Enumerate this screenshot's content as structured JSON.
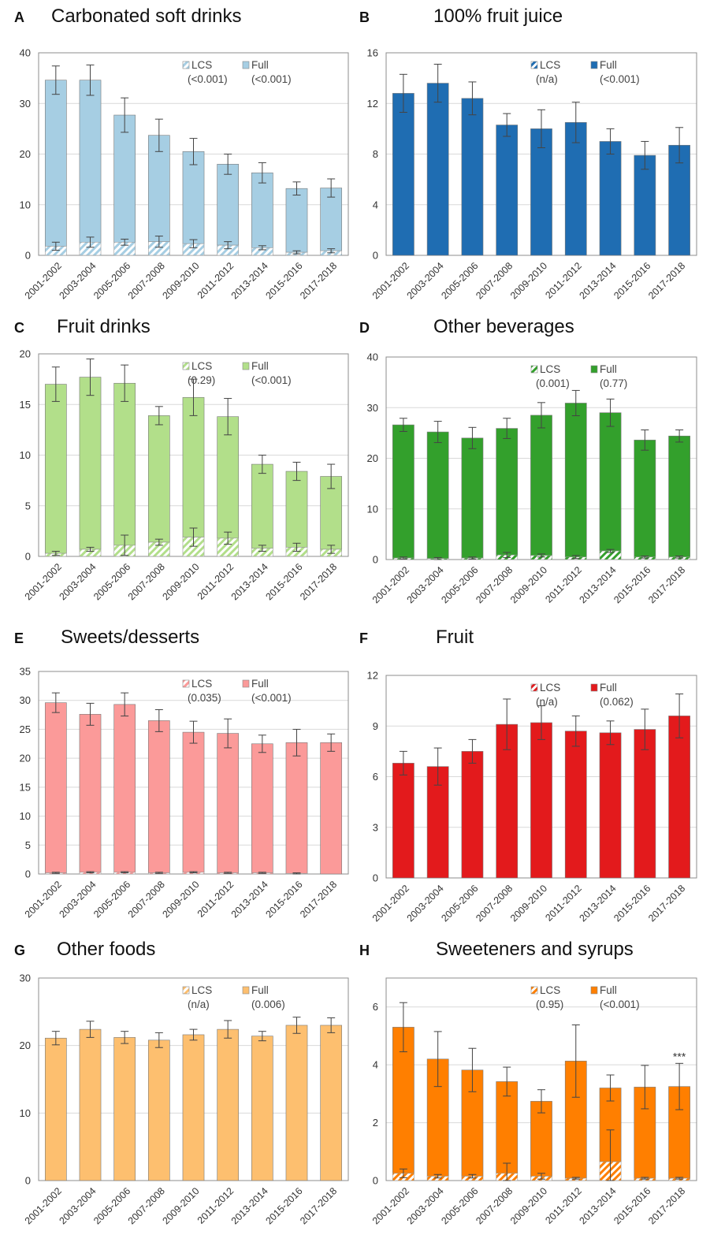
{
  "chart_data": [
    {
      "type": "bar",
      "panel": "A",
      "title": "Carbonated soft drinks",
      "categories": [
        "2001-2002",
        "2003-2004",
        "2005-2006",
        "2007-2008",
        "2009-2010",
        "2011-2012",
        "2013-2014",
        "2015-2016",
        "2017-2018"
      ],
      "ylim": [
        0,
        40
      ],
      "yticks": [
        0,
        10,
        20,
        30,
        40
      ],
      "grid": true,
      "legend_placement": "top-right",
      "color": "#a6cee3",
      "series": [
        {
          "name": "LCS",
          "p_label": "(<0.001)",
          "values": [
            1.8,
            2.6,
            2.6,
            2.7,
            2.3,
            2.0,
            1.5,
            0.6,
            0.9
          ],
          "error": [
            0.8,
            1.0,
            0.6,
            1.1,
            0.8,
            0.7,
            0.4,
            0.3,
            0.4
          ]
        },
        {
          "name": "Full",
          "p_label": "(<0.001)",
          "values": [
            32.8,
            32.0,
            25.1,
            21.0,
            18.2,
            16.0,
            14.8,
            12.6,
            12.4
          ],
          "error": [
            2.8,
            3.0,
            3.4,
            3.2,
            2.6,
            2.0,
            2.0,
            1.3,
            1.8
          ]
        }
      ]
    },
    {
      "type": "bar",
      "panel": "B",
      "title": "100% fruit juice",
      "categories": [
        "2001-2002",
        "2003-2004",
        "2005-2006",
        "2007-2008",
        "2009-2010",
        "2011-2012",
        "2013-2014",
        "2015-2016",
        "2017-2018"
      ],
      "ylim": [
        0,
        16
      ],
      "yticks": [
        0,
        4,
        8,
        12,
        16
      ],
      "grid": true,
      "legend_placement": "top-right",
      "color": "#1f6db2",
      "series": [
        {
          "name": "LCS",
          "p_label": "(n/a)",
          "values": [
            0,
            0,
            0,
            0,
            0,
            0,
            0,
            0,
            0
          ],
          "error": [
            0,
            0,
            0,
            0,
            0,
            0,
            0,
            0,
            0
          ]
        },
        {
          "name": "Full",
          "p_label": "(<0.001)",
          "values": [
            12.8,
            13.6,
            12.4,
            10.3,
            10.0,
            10.5,
            9.0,
            7.9,
            8.7
          ],
          "error": [
            1.5,
            1.5,
            1.3,
            0.9,
            1.5,
            1.6,
            1.0,
            1.1,
            1.4
          ]
        }
      ]
    },
    {
      "type": "bar",
      "panel": "C",
      "title": "Fruit drinks",
      "categories": [
        "2001-2002",
        "2003-2004",
        "2005-2006",
        "2007-2008",
        "2009-2010",
        "2011-2012",
        "2013-2014",
        "2015-2016",
        "2017-2018"
      ],
      "ylim": [
        0,
        20
      ],
      "yticks": [
        0,
        5,
        10,
        15,
        20
      ],
      "grid": true,
      "legend_placement": "top-right",
      "color": "#b2df8a",
      "series": [
        {
          "name": "LCS",
          "p_label": "(0.29)",
          "values": [
            0.3,
            0.7,
            1.1,
            1.4,
            1.9,
            1.8,
            0.8,
            0.9,
            0.7
          ],
          "error": [
            0.2,
            0.2,
            1.0,
            0.3,
            0.9,
            0.6,
            0.3,
            0.4,
            0.4
          ]
        },
        {
          "name": "Full",
          "p_label": "(<0.001)",
          "values": [
            16.7,
            17.0,
            16.0,
            12.5,
            13.8,
            12.0,
            8.3,
            7.5,
            7.2
          ],
          "error": [
            1.7,
            1.8,
            1.8,
            0.9,
            1.8,
            1.8,
            0.9,
            0.9,
            1.2
          ]
        }
      ]
    },
    {
      "type": "bar",
      "panel": "D",
      "title": "Other beverages",
      "categories": [
        "2001-2002",
        "2003-2004",
        "2005-2006",
        "2007-2008",
        "2009-2010",
        "2011-2012",
        "2013-2014",
        "2015-2016",
        "2017-2018"
      ],
      "ylim": [
        0,
        40
      ],
      "yticks": [
        0,
        10,
        20,
        30,
        40
      ],
      "grid": true,
      "legend_placement": "top-right",
      "color": "#33a02c",
      "series": [
        {
          "name": "LCS",
          "p_label": "(0.001)",
          "values": [
            0.3,
            0.2,
            0.3,
            0.9,
            0.8,
            0.5,
            1.7,
            0.5,
            0.5
          ],
          "error": [
            0.2,
            0.2,
            0.2,
            0.5,
            0.3,
            0.3,
            0.3,
            0.2,
            0.2
          ]
        },
        {
          "name": "Full",
          "p_label": "(0.77)",
          "values": [
            26.3,
            25.0,
            23.7,
            25.0,
            27.7,
            30.4,
            27.3,
            23.1,
            23.9
          ],
          "error": [
            1.3,
            2.1,
            2.1,
            2.0,
            2.5,
            2.5,
            2.7,
            2.0,
            1.2
          ]
        }
      ]
    },
    {
      "type": "bar",
      "panel": "E",
      "title": "Sweets/desserts",
      "categories": [
        "2001-2002",
        "2003-2004",
        "2005-2006",
        "2007-2008",
        "2009-2010",
        "2011-2012",
        "2013-2014",
        "2015-2016",
        "2017-2018"
      ],
      "ylim": [
        0,
        35
      ],
      "yticks": [
        0,
        5,
        10,
        15,
        20,
        25,
        30,
        35
      ],
      "grid": true,
      "legend_placement": "top-right",
      "color": "#fb9a99",
      "series": [
        {
          "name": "LCS",
          "p_label": "(0.035)",
          "values": [
            0.2,
            0.3,
            0.3,
            0.2,
            0.3,
            0.2,
            0.2,
            0.1,
            0.0
          ],
          "error": [
            0.1,
            0.1,
            0.1,
            0.1,
            0.1,
            0.1,
            0.1,
            0.1,
            0.0
          ]
        },
        {
          "name": "Full",
          "p_label": "(<0.001)",
          "values": [
            29.4,
            27.3,
            29.0,
            26.3,
            24.2,
            24.1,
            22.3,
            22.6,
            22.7
          ],
          "error": [
            1.7,
            1.9,
            2.0,
            1.9,
            1.9,
            2.5,
            1.5,
            2.3,
            1.5
          ]
        }
      ]
    },
    {
      "type": "bar",
      "panel": "F",
      "title": "Fruit",
      "categories": [
        "2001-2002",
        "2003-2004",
        "2005-2006",
        "2007-2008",
        "2009-2010",
        "2011-2012",
        "2013-2014",
        "2015-2016",
        "2017-2018"
      ],
      "ylim": [
        0,
        12
      ],
      "yticks": [
        0,
        3,
        6,
        9,
        12
      ],
      "grid": true,
      "legend_placement": "top-right",
      "color": "#e31a1c",
      "series": [
        {
          "name": "LCS",
          "p_label": "(n/a)",
          "values": [
            0,
            0,
            0,
            0,
            0,
            0,
            0,
            0,
            0
          ],
          "error": [
            0,
            0,
            0,
            0,
            0,
            0,
            0,
            0,
            0
          ]
        },
        {
          "name": "Full",
          "p_label": "(0.062)",
          "values": [
            6.8,
            6.6,
            7.5,
            9.1,
            9.2,
            8.7,
            8.6,
            8.8,
            9.6
          ],
          "error": [
            0.7,
            1.1,
            0.7,
            1.5,
            1.0,
            0.9,
            0.7,
            1.2,
            1.3
          ]
        }
      ]
    },
    {
      "type": "bar",
      "panel": "G",
      "title": "Other foods",
      "categories": [
        "2001-2002",
        "2003-2004",
        "2005-2006",
        "2007-2008",
        "2009-2010",
        "2011-2012",
        "2013-2014",
        "2015-2016",
        "2017-2018"
      ],
      "ylim": [
        0,
        30
      ],
      "yticks": [
        0,
        10,
        20,
        30
      ],
      "grid": true,
      "legend_placement": "top-right",
      "color": "#fdbf6f",
      "series": [
        {
          "name": "LCS",
          "p_label": "(n/a)",
          "values": [
            0,
            0,
            0,
            0,
            0,
            0,
            0,
            0,
            0
          ],
          "error": [
            0,
            0,
            0,
            0,
            0,
            0,
            0,
            0,
            0
          ]
        },
        {
          "name": "Full",
          "p_label": "(0.006)",
          "values": [
            21.1,
            22.4,
            21.2,
            20.8,
            21.6,
            22.4,
            21.4,
            23.0,
            23.0
          ],
          "error": [
            1.0,
            1.2,
            0.9,
            1.1,
            0.8,
            1.3,
            0.7,
            1.2,
            1.1
          ]
        }
      ]
    },
    {
      "type": "bar",
      "panel": "H",
      "title": "Sweeteners and syrups",
      "categories": [
        "2001-2002",
        "2003-2004",
        "2005-2006",
        "2007-2008",
        "2009-2010",
        "2011-2012",
        "2013-2014",
        "2015-2016",
        "2017-2018"
      ],
      "ylim": [
        0,
        7
      ],
      "yticks": [
        0,
        2,
        4,
        6
      ],
      "grid": true,
      "legend_placement": "top-right",
      "color": "#ff7f00",
      "annotation": "***",
      "series": [
        {
          "name": "LCS",
          "p_label": "(0.95)",
          "values": [
            0.25,
            0.15,
            0.15,
            0.25,
            0.15,
            0.08,
            0.65,
            0.08,
            0.08
          ],
          "error": [
            0.15,
            0.06,
            0.06,
            0.35,
            0.1,
            0.03,
            1.1,
            0.03,
            0.03
          ]
        },
        {
          "name": "Full",
          "p_label": "(<0.001)",
          "values": [
            5.05,
            4.05,
            3.67,
            3.17,
            2.59,
            4.05,
            2.55,
            3.15,
            3.17
          ],
          "error": [
            0.85,
            0.95,
            0.75,
            0.5,
            0.4,
            1.25,
            0.45,
            0.75,
            0.8
          ]
        }
      ]
    }
  ]
}
